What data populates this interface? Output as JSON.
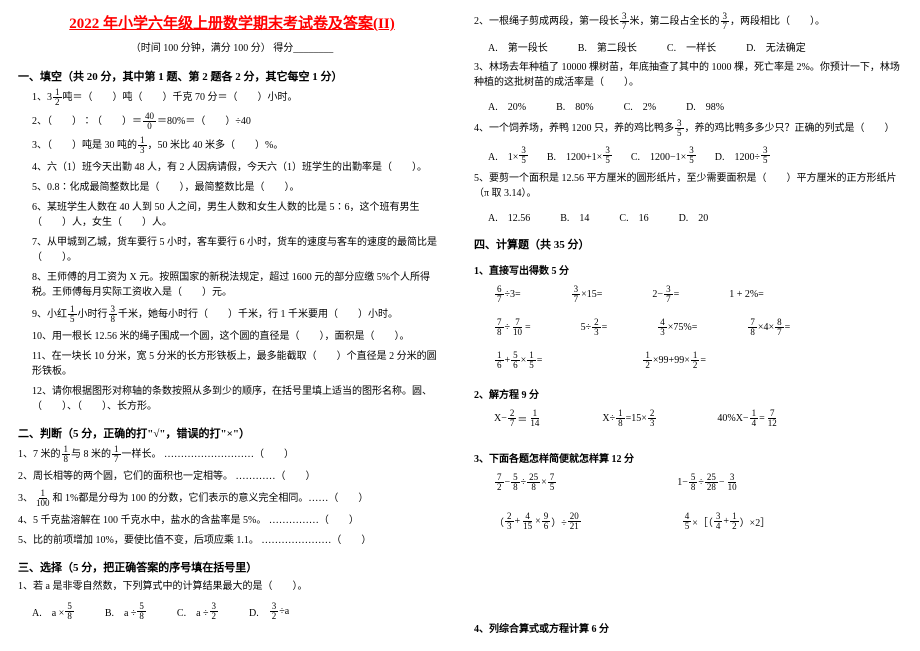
{
  "title": "2022 年小学六年级上册数学期末考试卷及答案(II)",
  "subtitle": "（时间 100 分钟，满分 100 分）    得分________",
  "s1": {
    "head": "一、填空（共 20 分，其中第 1 题、第 2 题各 2 分，其它每空 1 分）",
    "q1a": "1、3",
    "q1_f": {
      "n": "1",
      "d": "2"
    },
    "q1b": "吨＝（　　）吨（　　）千克    70 分＝（　　）小时。",
    "q2a": "2、（　　）∶（　　）＝",
    "q2_f": {
      "n": "40",
      "d": "0"
    },
    "q2b": "＝80%＝（　　）÷40",
    "q3": "3、（　　）吨是 30 吨的",
    "q3_f": {
      "n": "1",
      "d": "3"
    },
    "q3b": "，50 米比 40 米多（　　）%。",
    "q4": "4、六（1）班今天出勤 48 人，有 2 人因病请假，今天六（1）班学生的出勤率是（　　）。",
    "q5": "5、0.8∶化成最简整数比是（　　），最简整数比是（　　）。",
    "q6": "6、某班学生人数在 40 人到 50 人之间，男生人数和女生人数的比是 5∶6，这个班有男生（　　）人，女生（　　）人。",
    "q7": "7、从甲城到乙城，货车要行 5 小时，客车要行 6 小时，货车的速度与客车的速度的最简比是（　　）。",
    "q8": "8、王师傅的月工资为 X 元。按照国家的新税法规定，超过 1600 元的部分应缴 5%个人所得税。王师傅每月实际工资收入是（　　）元。",
    "q9a": "9、小红",
    "q9_f": {
      "n": "1",
      "d": "5"
    },
    "q9b": "小时行",
    "q9_f2": {
      "n": "3",
      "d": "8"
    },
    "q9c": "千米，她每小时行（　　）千米，行 1 千米要用（　　）小时。",
    "q10": "10、用一根长 12.56 米的绳子围成一个圆，这个圆的直径是（　　），面积是（　　）。",
    "q11": "11、在一块长 10 分米，宽 5 分米的长方形铁板上，最多能截取（　　）个直径是 2 分米的圆形铁板。",
    "q12": "12、请你根据图形对称轴的条数按照从多到少的顺序，在括号里填上适当的图形名称。圆、（　　）、（　　）、长方形。"
  },
  "s2": {
    "head": "二、判断（5 分，正确的打\"√\"，错误的打\"×\"）",
    "q1a": "1、7 米的",
    "q1_f": {
      "n": "1",
      "d": "8"
    },
    "q1b": "与 8 米的",
    "q1_f2": {
      "n": "1",
      "d": "7"
    },
    "q1c": "一样长。 ………………………（　　）",
    "q2": "2、周长相等的两个圆，它们的面积也一定相等。 …………（　　）",
    "q3a": "3、",
    "q3_f": {
      "n": "1",
      "d": "100"
    },
    "q3b": "和 1%都是分母为 100 的分数，它们表示的意义完全相同。……（　　）",
    "q4": "4、5 千克盐溶解在 100 千克水中，盐水的含盐率是 5%。 ……………（　　）",
    "q5": "5、比的前项增加 10%，要使比值不变，后项应乘 1.1。 …………………（　　）"
  },
  "s3": {
    "head": "三、选择（5 分，把正确答案的序号填在括号里）",
    "q1": "1、若 a 是非零自然数，下列算式中的计算结果最大的是（　　）。",
    "q1_optA": "A.　a ×",
    "q1_fA": {
      "n": "5",
      "d": "8"
    },
    "q1_optB": "B.　a ÷",
    "q1_fB": {
      "n": "5",
      "d": "8"
    },
    "q1_optC": "C.　a ÷",
    "q1_fC": {
      "n": "3",
      "d": "2"
    },
    "q1_optD": "D.　",
    "q1_fD": {
      "n": "3",
      "d": "2"
    },
    "q1_optD2": "÷a",
    "q2a": "2、一根绳子剪成两段，第一段长",
    "q2_f1": {
      "n": "3",
      "d": "7"
    },
    "q2b": "米，第二段占全长的",
    "q2_f2": {
      "n": "3",
      "d": "7"
    },
    "q2c": "，两段相比（　　）。",
    "q2_optA": "A.　第一段长",
    "q2_optB": "B.　第二段长",
    "q2_optC": "C.　一样长",
    "q2_optD": "D.　无法确定",
    "q3": "3、林场去年种植了 10000 棵树苗，年底抽查了其中的 1000 棵，死亡率是 2%。你预计一下，林场种植的这批树苗的成活率是（　　）。",
    "q3_optA": "A.　20%",
    "q3_optB": "B.　80%",
    "q3_optC": "C.　2%",
    "q3_optD": "D.　98%",
    "q4a": "4、一个饲养场，养鸭 1200 只，养的鸡比鸭多",
    "q4_f": {
      "n": "3",
      "d": "5"
    },
    "q4b": "，养的鸡比鸭多多少只？正确的列式是（　　）",
    "q4_optA": "A.　1×",
    "q4_fA": {
      "n": "3",
      "d": "5"
    },
    "q4_optB": "B.　1200+1×",
    "q4_fB": {
      "n": "3",
      "d": "5"
    },
    "q4_optC": "C.　1200−1×",
    "q4_fC": {
      "n": "3",
      "d": "5"
    },
    "q4_optD": "D.　1200÷",
    "q4_fD": {
      "n": "3",
      "d": "5"
    },
    "q5": "5、要剪一个面积是 12.56 平方厘米的圆形纸片，至少需要面积是（　　）平方厘米的正方形纸片（π 取 3.14）。",
    "q5_optA": "A.　12.56",
    "q5_optB": "B.　14",
    "q5_optC": "C.　16",
    "q5_optD": "D.　20"
  },
  "s4": {
    "head": "四、计算题（共 35 分）",
    "sub1": "1、直接写出得数 5 分",
    "r1_1a": {
      "n": "6",
      "d": "7"
    },
    "r1_1b": "÷3=",
    "r1_2a": {
      "n": "3",
      "d": "7"
    },
    "r1_2b": "×15=",
    "r1_3a": "2−",
    "r1_3f": {
      "n": "3",
      "d": "7"
    },
    "r1_3b": "=",
    "r1_4": "1 + 2%=",
    "r2_1a": {
      "n": "7",
      "d": "8"
    },
    "r2_1b": "÷",
    "r2_1c": {
      "n": "7",
      "d": "10"
    },
    "r2_1d": "=",
    "r2_2a": "5÷",
    "r2_2f": {
      "n": "2",
      "d": "3"
    },
    "r2_2b": "=",
    "r2_3a": {
      "n": "4",
      "d": "3"
    },
    "r2_3b": "×75%=",
    "r2_4a": {
      "n": "7",
      "d": "8"
    },
    "r2_4b": "×4×",
    "r2_4c": {
      "n": "8",
      "d": "7"
    },
    "r2_4d": "=",
    "r3_1a": {
      "n": "1",
      "d": "6"
    },
    "r3_1b": "+",
    "r3_1c": {
      "n": "5",
      "d": "6"
    },
    "r3_1d": "×",
    "r3_1e": {
      "n": "1",
      "d": "5"
    },
    "r3_1f": "=",
    "r3_2a": {
      "n": "1",
      "d": "2"
    },
    "r3_2b": "×99+99×",
    "r3_2c": {
      "n": "1",
      "d": "2"
    },
    "r3_2d": "=",
    "sub2": "2、解方程 9 分",
    "e1a": "X−",
    "e1f1": {
      "n": "2",
      "d": "7"
    },
    "e1b": "＝",
    "e1f2": {
      "n": "1",
      "d": "14"
    },
    "e2a": "X÷",
    "e2f1": {
      "n": "1",
      "d": "8"
    },
    "e2b": "=15×",
    "e2f2": {
      "n": "2",
      "d": "3"
    },
    "e3a": "40%X−",
    "e3f1": {
      "n": "1",
      "d": "4"
    },
    "e3b": "=",
    "e3f2": {
      "n": "7",
      "d": "12"
    },
    "sub3": "3、下面各题怎样简便就怎样算 12 分",
    "c1_1a": {
      "n": "7",
      "d": "2"
    },
    "c1_1b": "−",
    "c1_1c": {
      "n": "5",
      "d": "8"
    },
    "c1_1d": "÷",
    "c1_1e": {
      "n": "25",
      "d": "8"
    },
    "c1_1f": "×",
    "c1_1g": {
      "n": "7",
      "d": "5"
    },
    "c1_2a": "1−",
    "c1_2b": {
      "n": "5",
      "d": "8"
    },
    "c1_2c": "÷",
    "c1_2d": {
      "n": "25",
      "d": "28"
    },
    "c1_2e": "−",
    "c1_2f": {
      "n": "3",
      "d": "10"
    },
    "c2_1a": "（",
    "c2_1b": {
      "n": "2",
      "d": "3"
    },
    "c2_1c": "+",
    "c2_1d": {
      "n": "4",
      "d": "15"
    },
    "c2_1e": "×",
    "c2_1f": {
      "n": "9",
      "d": "6"
    },
    "c2_1g": "）÷",
    "c2_1h": {
      "n": "20",
      "d": "21"
    },
    "c2_2a": {
      "n": "4",
      "d": "5"
    },
    "c2_2b": "×［（",
    "c2_2c": {
      "n": "3",
      "d": "4"
    },
    "c2_2d": "+",
    "c2_2e": {
      "n": "1",
      "d": "2"
    },
    "c2_2f": "）×2］",
    "sub4": "4、列综合算式或方程计算 6 分"
  }
}
